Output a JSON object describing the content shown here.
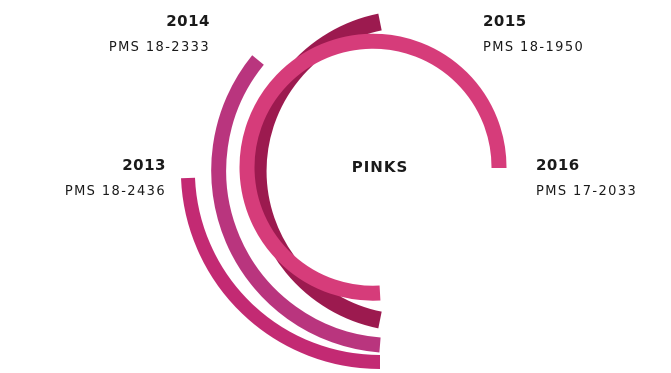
{
  "title": "PINKS",
  "colors": {
    "c2013": "#c32a73",
    "c2014_outer": "#b9357e",
    "c2014_inner": "#9c1a4f",
    "c2015": "#d63c7a"
  },
  "labels": [
    {
      "year": "2014",
      "pms": "PMS 18-2333"
    },
    {
      "year": "2015",
      "pms": "PMS 18-1950"
    },
    {
      "year": "2013",
      "pms": "PMS 18-2436"
    },
    {
      "year": "2016",
      "pms": "PMS 17-2033"
    }
  ]
}
